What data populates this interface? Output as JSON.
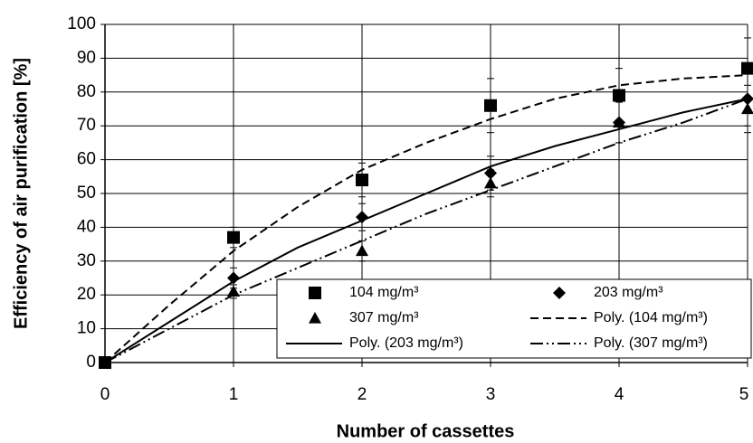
{
  "chart_data": {
    "type": "scatter",
    "xlabel": "Number of cassettes",
    "ylabel": "Efficiency of air purification  [%]",
    "x": [
      0,
      1,
      2,
      3,
      4,
      5
    ],
    "xlim": [
      0,
      5
    ],
    "xticks": [
      0,
      1,
      2,
      3,
      4,
      5
    ],
    "ylim": [
      0,
      100
    ],
    "yticks": [
      0,
      10,
      20,
      30,
      40,
      50,
      60,
      70,
      80,
      90,
      100
    ],
    "grid": true,
    "legend": "lower right",
    "series": [
      {
        "name": "104 mg/m³",
        "color": "#000000",
        "marker": "square",
        "values": [
          0,
          37,
          54,
          76,
          79,
          87
        ],
        "errors": [
          0,
          3,
          5,
          8,
          8,
          9
        ]
      },
      {
        "name": "203 mg/m³",
        "color": "#000000",
        "marker": "diamond",
        "values": [
          0,
          25,
          43,
          56,
          71,
          78
        ],
        "errors": [
          0,
          3,
          4,
          5,
          6,
          8
        ]
      },
      {
        "name": "307 mg/m³",
        "color": "#000000",
        "marker": "triangle",
        "values": [
          0,
          21,
          33,
          53,
          71,
          75
        ],
        "errors": [
          0,
          2,
          3,
          4,
          6,
          7
        ]
      }
    ],
    "trendlines": [
      {
        "name": "Poly. (104 mg/m³)",
        "color": "#000000",
        "dash": "dashed",
        "x": [
          0,
          0.5,
          1,
          1.5,
          2,
          2.5,
          3,
          3.5,
          4,
          4.5,
          5
        ],
        "values": [
          0,
          17,
          33,
          46,
          57,
          65,
          72,
          78,
          82,
          84,
          85
        ]
      },
      {
        "name": "Poly. (203 mg/m³)",
        "color": "#000000",
        "dash": "solid",
        "x": [
          0,
          0.5,
          1,
          1.5,
          2,
          2.5,
          3,
          3.5,
          4,
          4.5,
          5
        ],
        "values": [
          0,
          12,
          24,
          34,
          42,
          50,
          58,
          64,
          69,
          74,
          78
        ]
      },
      {
        "name": "Poly. (307 mg/m³)",
        "color": "#000000",
        "dash": "dash-dot-dot",
        "x": [
          0,
          0.5,
          1,
          1.5,
          2,
          2.5,
          3,
          3.5,
          4,
          4.5,
          5
        ],
        "values": [
          0,
          10,
          20,
          28,
          36,
          44,
          51,
          58,
          65,
          71,
          78
        ]
      }
    ]
  }
}
